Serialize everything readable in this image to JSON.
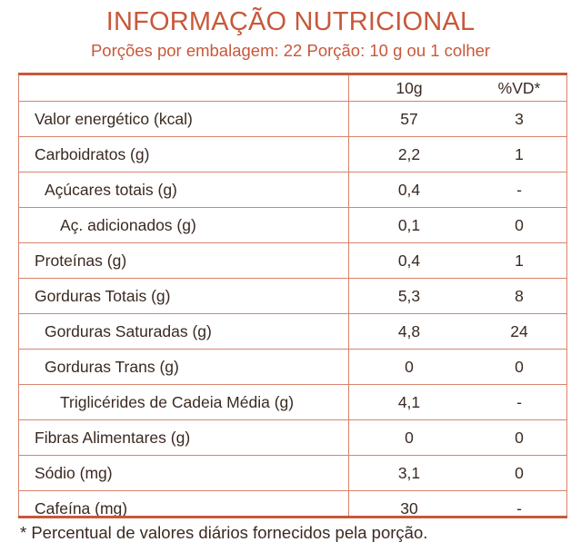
{
  "title": "INFORMAÇÃO NUTRICIONAL",
  "subtitle": "Porções por embalagem: 22  Porção: 10 g ou 1 colher",
  "header": {
    "amount": "10g",
    "vd": "%VD*"
  },
  "rows": [
    {
      "label": "Valor energético (kcal)",
      "amount": "57",
      "vd": "3"
    },
    {
      "label": "Carboidratos (g)",
      "amount": "2,2",
      "vd": "1"
    },
    {
      "label": "Açúcares totais (g)",
      "amount": "0,4",
      "vd": "-"
    },
    {
      "label": "Aç. adicionados (g)",
      "amount": "0,1",
      "vd": "0"
    },
    {
      "label": "Proteínas (g)",
      "amount": "0,4",
      "vd": "1"
    },
    {
      "label": "Gorduras Totais (g)",
      "amount": "5,3",
      "vd": "8"
    },
    {
      "label": "Gorduras Saturadas (g)",
      "amount": "4,8",
      "vd": "24"
    },
    {
      "label": "Gorduras Trans (g)",
      "amount": "0",
      "vd": "0"
    },
    {
      "label": "Triglicérides de Cadeia Média (g)",
      "amount": "4,1",
      "vd": "-"
    },
    {
      "label": "Fibras Alimentares (g)",
      "amount": "0",
      "vd": "0"
    },
    {
      "label": "Sódio (mg)",
      "amount": "3,1",
      "vd": "0"
    },
    {
      "label": "Cafeína (mg)",
      "amount": "30",
      "vd": "-"
    }
  ],
  "footnote": "* Percentual de valores diários fornecidos pela porção.",
  "colors": {
    "accent": "#c8583a",
    "rule": "#d8836b",
    "text": "#3a2a22"
  }
}
